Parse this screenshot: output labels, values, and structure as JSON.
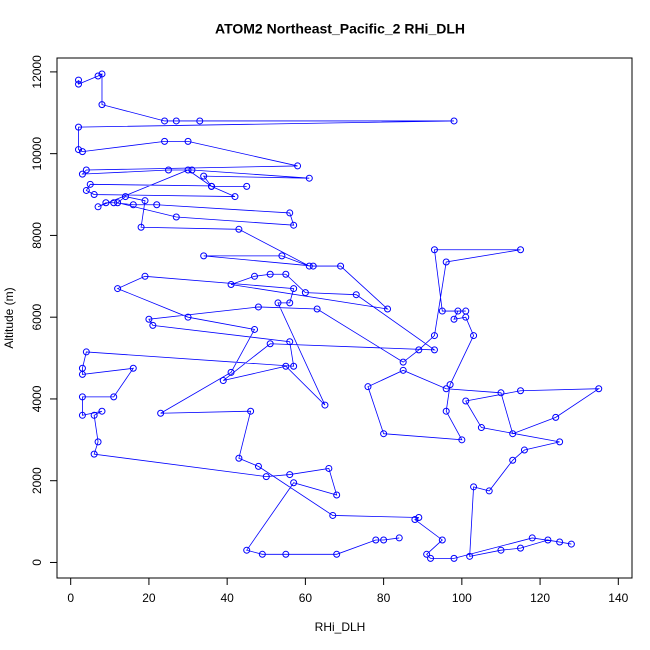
{
  "chart_data": {
    "type": "line",
    "title": "ATOM2 Northeast_Pacific_2 RHi_DLH",
    "x_label": "RHi_DLH",
    "y_label": "Altitude (m)",
    "color": "#0000ff",
    "xlim": [
      -3.5,
      143.5
    ],
    "ylim": [
      -380,
      12340
    ],
    "xticks": [
      0,
      20,
      40,
      60,
      80,
      100,
      120,
      140
    ],
    "yticks": [
      0,
      2000,
      4000,
      6000,
      8000,
      10000,
      12000
    ],
    "x": [
      2,
      2,
      7,
      8,
      8,
      24,
      27,
      33,
      98,
      2,
      2,
      3,
      24,
      30,
      58,
      4,
      3,
      25,
      31,
      61,
      34,
      36,
      45,
      5,
      4,
      6,
      42,
      36,
      30,
      7,
      9,
      11,
      16,
      22,
      56,
      57,
      27,
      12,
      14,
      19,
      18,
      43,
      61,
      54,
      34,
      62,
      69,
      81,
      41,
      47,
      51,
      55,
      60,
      73,
      93,
      51,
      39,
      55,
      65,
      53,
      56,
      57,
      19,
      12,
      30,
      47,
      41,
      23,
      46,
      43,
      48,
      67,
      89,
      88,
      95,
      91,
      92,
      98,
      118,
      125,
      128,
      122,
      115,
      110,
      102,
      103,
      107,
      113,
      116,
      125,
      105,
      101,
      115,
      135,
      124,
      113,
      110,
      96,
      85,
      76,
      80,
      100,
      96,
      97,
      103,
      101,
      98,
      99,
      101,
      95,
      93,
      115,
      96,
      93,
      89,
      85,
      63,
      48,
      20,
      21,
      56,
      57,
      4,
      3,
      3,
      16,
      11,
      3,
      3,
      8,
      6,
      7,
      6,
      50,
      56,
      66,
      68,
      57,
      45,
      49,
      55,
      68,
      78,
      80,
      84
    ],
    "values": [
      11800,
      11700,
      11900,
      11950,
      11200,
      10800,
      10800,
      10800,
      10800,
      10650,
      10100,
      10050,
      10300,
      10300,
      9700,
      9600,
      9500,
      9600,
      9600,
      9400,
      9450,
      9200,
      9200,
      9250,
      9100,
      9000,
      8950,
      9200,
      9600,
      8700,
      8800,
      8800,
      8750,
      8750,
      8550,
      8250,
      8450,
      8800,
      8950,
      8850,
      8200,
      8150,
      7250,
      7500,
      7500,
      7250,
      7250,
      6200,
      6800,
      7000,
      7050,
      7050,
      6600,
      6550,
      5200,
      5350,
      4450,
      4800,
      3850,
      6350,
      6350,
      6700,
      7000,
      6700,
      6000,
      5700,
      4650,
      3650,
      3700,
      2550,
      2350,
      1150,
      1100,
      1050,
      550,
      200,
      100,
      100,
      600,
      500,
      450,
      550,
      350,
      300,
      150,
      1850,
      1750,
      2500,
      2750,
      2950,
      3300,
      3950,
      4200,
      4250,
      3550,
      3150,
      4150,
      4250,
      4700,
      4300,
      3150,
      3000,
      3700,
      4350,
      5550,
      6000,
      5950,
      6150,
      6150,
      6150,
      7650,
      7650,
      7350,
      5550,
      5200,
      4900,
      6200,
      6250,
      5950,
      5800,
      5400,
      4800,
      5150,
      4750,
      4600,
      4750,
      4050,
      4050,
      3600,
      3700,
      3600,
      2950,
      2650,
      2100,
      2150,
      2300,
      1650,
      1950,
      300,
      200,
      200,
      200,
      550,
      550,
      600
    ]
  }
}
